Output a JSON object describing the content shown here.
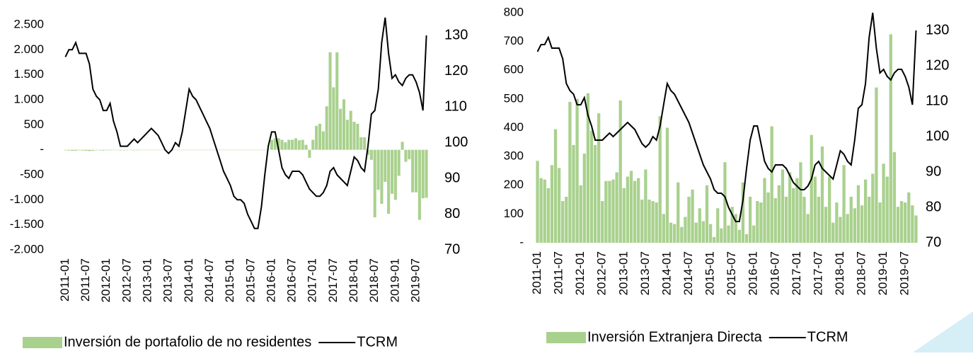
{
  "chart_data": [
    {
      "type": "bar_line",
      "categories": [
        "2011-01",
        null,
        null,
        null,
        null,
        null,
        "2011-07",
        null,
        null,
        null,
        null,
        null,
        "2012-01",
        null,
        null,
        null,
        null,
        null,
        "2012-07",
        null,
        null,
        null,
        null,
        null,
        "2013-01",
        null,
        null,
        null,
        null,
        null,
        "2013-07",
        null,
        null,
        null,
        null,
        null,
        "2014-01",
        null,
        null,
        null,
        null,
        null,
        "2014-07",
        null,
        null,
        null,
        null,
        null,
        "2015-01",
        null,
        null,
        null,
        null,
        null,
        "2015-07",
        null,
        null,
        null,
        null,
        null,
        "2016-01",
        null,
        null,
        null,
        null,
        null,
        "2016-07",
        null,
        null,
        null,
        null,
        null,
        "2017-01",
        null,
        null,
        null,
        null,
        null,
        "2017-07",
        null,
        null,
        null,
        null,
        null,
        "2018-01",
        null,
        null,
        null,
        null,
        null,
        "2018-07",
        null,
        null,
        null,
        null,
        null,
        "2019-01",
        null,
        null,
        null,
        null,
        null,
        "2019-07",
        null,
        null,
        null
      ],
      "series": [
        {
          "name": "Inversión de portafolio de no residentes",
          "color": "#a9d18e",
          "kind": "bar",
          "values": [
            -10,
            -15,
            -20,
            -20,
            -10,
            -15,
            -20,
            -25,
            -20,
            -10,
            -10,
            -15,
            -10,
            -10,
            -5,
            -5,
            -10,
            -10,
            -5,
            -5,
            -10,
            -10,
            -5,
            -5,
            -5,
            -5,
            -5,
            -5,
            -5,
            -5,
            -5,
            -5,
            -5,
            -5,
            -5,
            -5,
            -5,
            -5,
            -5,
            -5,
            -5,
            -5,
            -5,
            -5,
            -5,
            -5,
            -5,
            -5,
            -5,
            -5,
            -5,
            -5,
            -5,
            -5,
            -5,
            -5,
            -5,
            -5,
            -5,
            -5,
            200,
            230,
            230,
            200,
            150,
            200,
            200,
            230,
            190,
            200,
            100,
            -160,
            200,
            480,
            520,
            370,
            870,
            1950,
            1250,
            1950,
            820,
            1010,
            600,
            780,
            560,
            520,
            250,
            250,
            -100,
            -200,
            -1350,
            -800,
            -1080,
            -640,
            -1280,
            -880,
            -1000,
            -520,
            160,
            -240,
            -190,
            -850,
            -850,
            -1400,
            -970,
            -960
          ]
        },
        {
          "name": "TCRM",
          "color": "#000000",
          "kind": "line",
          "axis": "y2",
          "values": [
            124,
            126,
            126,
            128,
            125,
            125,
            125,
            122,
            115,
            113,
            112,
            109,
            109,
            111,
            106,
            103,
            99,
            99,
            99,
            100,
            101,
            100,
            101,
            102,
            103,
            104,
            103,
            102,
            100,
            98,
            97,
            98,
            100,
            99,
            103,
            109,
            115,
            113,
            112,
            110,
            108,
            106,
            104,
            101,
            98,
            95,
            92,
            90,
            88,
            85,
            84,
            84,
            83,
            80,
            78,
            76,
            76,
            82,
            91,
            99,
            103,
            103,
            98,
            93,
            91,
            90,
            92,
            92,
            92,
            91,
            89,
            87,
            86,
            85,
            85,
            86,
            88,
            92,
            93,
            91,
            90,
            89,
            88,
            92,
            96,
            95,
            93,
            92,
            99,
            108,
            109,
            115,
            128,
            135,
            125,
            118,
            119,
            117,
            116,
            118,
            119,
            119,
            117,
            114,
            109,
            130
          ]
        }
      ],
      "ylim": [
        -2000,
        2500
      ],
      "yticks": [
        {
          "value": -2000,
          "label": "-2.000"
        },
        {
          "value": -1500,
          "label": "-1.500"
        },
        {
          "value": -1000,
          "label": "-1.000"
        },
        -500,
        {
          "value": 0,
          "label": "-"
        },
        500,
        {
          "value": 1000,
          "label": "1.000"
        },
        {
          "value": 1500,
          "label": "1.500"
        },
        {
          "value": 2000,
          "label": "2.000"
        },
        {
          "value": 2500,
          "label": "2.500"
        }
      ],
      "y2lim": [
        70,
        133
      ],
      "y2ticks": [
        70,
        80,
        90,
        100,
        110,
        120,
        130
      ]
    },
    {
      "type": "bar_line",
      "categories": [
        "2011-01",
        null,
        null,
        null,
        null,
        null,
        "2011-07",
        null,
        null,
        null,
        null,
        null,
        "2012-01",
        null,
        null,
        null,
        null,
        null,
        "2012-07",
        null,
        null,
        null,
        null,
        null,
        "2013-01",
        null,
        null,
        null,
        null,
        null,
        "2013-07",
        null,
        null,
        null,
        null,
        null,
        "2014-01",
        null,
        null,
        null,
        null,
        null,
        "2014-07",
        null,
        null,
        null,
        null,
        null,
        "2015-01",
        null,
        null,
        null,
        null,
        null,
        "2015-07",
        null,
        null,
        null,
        null,
        null,
        "2016-01",
        null,
        null,
        null,
        null,
        null,
        "2016-07",
        null,
        null,
        null,
        null,
        null,
        "2017-01",
        null,
        null,
        null,
        null,
        null,
        "2017-07",
        null,
        null,
        null,
        null,
        null,
        "2018-01",
        null,
        null,
        null,
        null,
        null,
        "2018-07",
        null,
        null,
        null,
        null,
        null,
        "2019-01",
        null,
        null,
        null,
        null,
        null,
        "2019-07",
        null,
        null,
        null
      ],
      "series": [
        {
          "name": "Inversión Extranjera Directa",
          "color": "#a9d18e",
          "kind": "bar",
          "values": [
            285,
            225,
            220,
            190,
            270,
            395,
            260,
            145,
            160,
            490,
            340,
            500,
            200,
            310,
            520,
            390,
            340,
            450,
            145,
            215,
            215,
            220,
            245,
            495,
            190,
            230,
            250,
            215,
            225,
            150,
            255,
            150,
            145,
            140,
            440,
            100,
            400,
            70,
            65,
            210,
            55,
            90,
            160,
            185,
            70,
            120,
            75,
            200,
            65,
            20,
            120,
            50,
            280,
            60,
            125,
            100,
            45,
            210,
            30,
            160,
            60,
            145,
            140,
            225,
            175,
            405,
            155,
            200,
            255,
            160,
            245,
            190,
            225,
            280,
            160,
            100,
            375,
            230,
            160,
            335,
            125,
            230,
            70,
            140,
            90,
            270,
            100,
            160,
            120,
            200,
            130,
            220,
            160,
            240,
            540,
            140,
            275,
            230,
            725,
            315,
            125,
            145,
            140,
            175,
            130,
            95
          ]
        },
        {
          "name": "TCRM",
          "color": "#000000",
          "kind": "line",
          "axis": "y2",
          "values": [
            124,
            126,
            126,
            128,
            125,
            125,
            125,
            122,
            115,
            113,
            112,
            109,
            109,
            111,
            106,
            103,
            99,
            99,
            99,
            100,
            101,
            100,
            101,
            102,
            103,
            104,
            103,
            102,
            100,
            98,
            97,
            98,
            100,
            99,
            103,
            109,
            115,
            113,
            112,
            110,
            108,
            106,
            104,
            101,
            98,
            95,
            92,
            90,
            88,
            85,
            84,
            84,
            83,
            80,
            78,
            76,
            76,
            82,
            91,
            99,
            103,
            103,
            98,
            93,
            91,
            90,
            92,
            92,
            92,
            91,
            89,
            87,
            86,
            85,
            85,
            86,
            88,
            92,
            93,
            91,
            90,
            89,
            88,
            92,
            96,
            95,
            93,
            92,
            99,
            108,
            109,
            115,
            128,
            135,
            125,
            118,
            119,
            117,
            116,
            118,
            119,
            119,
            117,
            114,
            109,
            130
          ]
        }
      ],
      "ylim": [
        0,
        800
      ],
      "yticks": [
        {
          "value": 0,
          "label": "-"
        },
        100,
        200,
        300,
        400,
        500,
        600,
        700,
        800
      ],
      "y2lim": [
        70,
        135
      ],
      "y2ticks": [
        70,
        80,
        90,
        100,
        110,
        120,
        130
      ]
    }
  ]
}
